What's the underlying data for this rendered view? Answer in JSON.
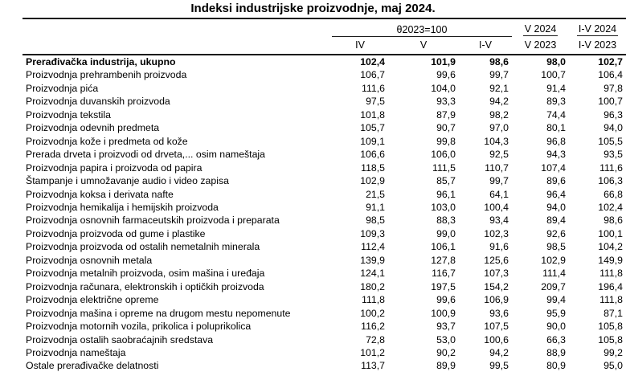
{
  "title": "Indeksi industrijske proizvodnje, maj 2024.",
  "colors": {
    "background": "#ffffff",
    "text": "#000000",
    "line": "#1a1a1a"
  },
  "chart_data": {
    "type": "table",
    "title": "Indeksi industrijske proizvodnje, maj 2024.",
    "base_header": "θ2023=100",
    "period_headers": [
      "IV",
      "V",
      "I-V"
    ],
    "ratio_headers": [
      {
        "numerator": "V 2024",
        "denominator": "V 2023"
      },
      {
        "numerator": "I-V 2024",
        "denominator": "I-V 2023"
      }
    ],
    "rows": [
      {
        "label": "Prerađivačka industrija, ukupno",
        "bold": true,
        "values": [
          "102,4",
          "101,9",
          "98,6",
          "98,0",
          "102,7"
        ]
      },
      {
        "label": "Proizvodnja prehrambenih proizvoda",
        "bold": false,
        "values": [
          "106,7",
          "99,6",
          "99,7",
          "100,7",
          "106,4"
        ]
      },
      {
        "label": "Proizvodnja pića",
        "bold": false,
        "values": [
          "111,6",
          "104,0",
          "92,1",
          "91,4",
          "97,8"
        ]
      },
      {
        "label": "Proizvodnja duvanskih proizvoda",
        "bold": false,
        "values": [
          "97,5",
          "93,3",
          "94,2",
          "89,3",
          "100,7"
        ]
      },
      {
        "label": "Proizvodnja tekstila",
        "bold": false,
        "values": [
          "101,8",
          "87,9",
          "98,2",
          "74,4",
          "96,3"
        ]
      },
      {
        "label": "Proizvodnja odevnih predmeta",
        "bold": false,
        "values": [
          "105,7",
          "90,7",
          "97,0",
          "80,1",
          "94,0"
        ]
      },
      {
        "label": "Proizvodnja kože i predmeta od kože",
        "bold": false,
        "values": [
          "109,1",
          "99,8",
          "104,3",
          "96,8",
          "105,5"
        ]
      },
      {
        "label": "Prerada drveta i proizvodi od drveta,... osim nameštaja",
        "bold": false,
        "values": [
          "106,6",
          "106,0",
          "92,5",
          "94,3",
          "93,5"
        ]
      },
      {
        "label": "Proizvodnja papira i proizvoda od papira",
        "bold": false,
        "values": [
          "118,5",
          "111,5",
          "110,7",
          "107,4",
          "111,6"
        ]
      },
      {
        "label": "Štampanje i umnožavanje audio i video zapisa",
        "bold": false,
        "values": [
          "102,9",
          "85,7",
          "99,7",
          "89,6",
          "106,3"
        ]
      },
      {
        "label": "Proizvodnja koksa i derivata nafte",
        "bold": false,
        "values": [
          "21,5",
          "96,1",
          "64,1",
          "96,4",
          "66,8"
        ]
      },
      {
        "label": "Proizvodnja hemikalija i hemijskih proizvoda",
        "bold": false,
        "values": [
          "91,1",
          "103,0",
          "100,4",
          "94,0",
          "102,4"
        ]
      },
      {
        "label": "Proizvodnja osnovnih farmaceutskih proizvoda i preparata",
        "bold": false,
        "values": [
          "98,5",
          "88,3",
          "93,4",
          "89,4",
          "98,6"
        ]
      },
      {
        "label": "Proizvodnja proizvoda od gume i plastike",
        "bold": false,
        "values": [
          "109,3",
          "99,0",
          "102,3",
          "92,6",
          "100,1"
        ]
      },
      {
        "label": "Proizvodnja proizvoda od ostalih nemetalnih minerala",
        "bold": false,
        "values": [
          "112,4",
          "106,1",
          "91,6",
          "98,5",
          "104,2"
        ]
      },
      {
        "label": "Proizvodnja osnovnih metala",
        "bold": false,
        "values": [
          "139,9",
          "127,8",
          "125,6",
          "102,9",
          "149,9"
        ]
      },
      {
        "label": "Proizvodnja metalnih proizvoda, osim mašina i uređaja",
        "bold": false,
        "values": [
          "124,1",
          "116,7",
          "107,3",
          "111,4",
          "111,8"
        ]
      },
      {
        "label": "Proizvodnja računara, elektronskih i optičkih proizvoda",
        "bold": false,
        "values": [
          "180,2",
          "197,5",
          "154,2",
          "209,7",
          "196,4"
        ]
      },
      {
        "label": "Proizvodnja električne opreme",
        "bold": false,
        "values": [
          "111,8",
          "99,6",
          "106,9",
          "99,4",
          "111,8"
        ]
      },
      {
        "label": "Proizvodnja mašina i opreme na drugom mestu nepomenute",
        "bold": false,
        "values": [
          "100,2",
          "100,9",
          "93,6",
          "95,9",
          "87,1"
        ]
      },
      {
        "label": "Proizvodnja motornih vozila, prikolica i poluprikolica",
        "bold": false,
        "values": [
          "116,2",
          "93,7",
          "107,5",
          "90,0",
          "105,8"
        ]
      },
      {
        "label": "Proizvodnja ostalih saobraćajnih sredstava",
        "bold": false,
        "values": [
          "72,8",
          "53,0",
          "100,6",
          "66,3",
          "105,8"
        ]
      },
      {
        "label": "Proizvodnja nameštaja",
        "bold": false,
        "values": [
          "101,2",
          "90,2",
          "94,2",
          "88,9",
          "99,2"
        ]
      },
      {
        "label": "Ostale prerađivačke delatnosti",
        "bold": false,
        "values": [
          "113,7",
          "89,9",
          "99,5",
          "80,9",
          "95,0"
        ]
      }
    ]
  }
}
